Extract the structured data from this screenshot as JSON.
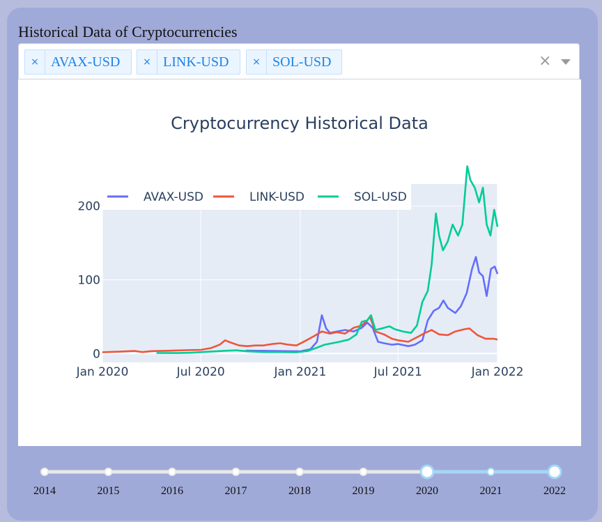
{
  "page": {
    "heading": "Historical Data of Cryptocurrencies"
  },
  "selector": {
    "chips": [
      {
        "label": "AVAX-USD",
        "remove": "×"
      },
      {
        "label": "LINK-USD",
        "remove": "×"
      },
      {
        "label": "SOL-USD",
        "remove": "×"
      }
    ],
    "clear_label": "×"
  },
  "colors": {
    "AVAX-USD": "#636efa",
    "LINK-USD": "#ef553b",
    "SOL-USD": "#00cc96",
    "plot_bg": "#e5ecf6",
    "slider_active": "#a5d7f5"
  },
  "chart_data": {
    "type": "line",
    "title": "Cryptocurrency Historical Data",
    "xlabel": "",
    "ylabel": "",
    "x_ticks": [
      "Jan 2020",
      "Jul 2020",
      "Jan 2021",
      "Jul 2021",
      "Jan 2022"
    ],
    "y_ticks": [
      "0",
      "100",
      "200"
    ],
    "xlim": [
      "2020-01-01",
      "2022-01-01"
    ],
    "ylim": [
      -12,
      230
    ],
    "grid": true,
    "legend": "top-left",
    "series": [
      {
        "name": "AVAX-USD",
        "points": [
          [
            "2020-09-22",
            4
          ],
          [
            "2020-10-15",
            3.8
          ],
          [
            "2020-11-15",
            3.5
          ],
          [
            "2020-12-15",
            3.2
          ],
          [
            "2021-01-01",
            3
          ],
          [
            "2021-01-20",
            6
          ],
          [
            "2021-02-01",
            16
          ],
          [
            "2021-02-10",
            52
          ],
          [
            "2021-02-18",
            34
          ],
          [
            "2021-02-25",
            28
          ],
          [
            "2021-03-10",
            30
          ],
          [
            "2021-03-25",
            32
          ],
          [
            "2021-04-10",
            30
          ],
          [
            "2021-04-25",
            35
          ],
          [
            "2021-05-05",
            42
          ],
          [
            "2021-05-15",
            35
          ],
          [
            "2021-05-25",
            16
          ],
          [
            "2021-06-05",
            14
          ],
          [
            "2021-06-20",
            12
          ],
          [
            "2021-07-01",
            13
          ],
          [
            "2021-07-20",
            10
          ],
          [
            "2021-08-01",
            12
          ],
          [
            "2021-08-15",
            18
          ],
          [
            "2021-08-25",
            45
          ],
          [
            "2021-09-05",
            58
          ],
          [
            "2021-09-15",
            62
          ],
          [
            "2021-09-23",
            72
          ],
          [
            "2021-10-01",
            62
          ],
          [
            "2021-10-15",
            55
          ],
          [
            "2021-10-25",
            64
          ],
          [
            "2021-11-05",
            82
          ],
          [
            "2021-11-15",
            115
          ],
          [
            "2021-11-22",
            131
          ],
          [
            "2021-11-28",
            110
          ],
          [
            "2021-12-05",
            105
          ],
          [
            "2021-12-12",
            78
          ],
          [
            "2021-12-20",
            115
          ],
          [
            "2021-12-27",
            118
          ],
          [
            "2022-01-01",
            108
          ]
        ]
      },
      {
        "name": "LINK-USD",
        "points": [
          [
            "2020-01-01",
            1.8
          ],
          [
            "2020-02-01",
            2.6
          ],
          [
            "2020-03-01",
            3.5
          ],
          [
            "2020-03-15",
            2
          ],
          [
            "2020-04-01",
            3.3
          ],
          [
            "2020-05-01",
            3.8
          ],
          [
            "2020-06-01",
            4.5
          ],
          [
            "2020-07-01",
            5
          ],
          [
            "2020-07-20",
            7.5
          ],
          [
            "2020-08-05",
            12
          ],
          [
            "2020-08-15",
            18
          ],
          [
            "2020-08-25",
            15
          ],
          [
            "2020-09-10",
            11
          ],
          [
            "2020-09-25",
            10
          ],
          [
            "2020-10-10",
            11
          ],
          [
            "2020-10-25",
            11
          ],
          [
            "2020-11-10",
            13
          ],
          [
            "2020-11-25",
            14
          ],
          [
            "2020-12-10",
            12
          ],
          [
            "2020-12-25",
            11
          ],
          [
            "2021-01-10",
            17
          ],
          [
            "2021-01-25",
            23
          ],
          [
            "2021-02-10",
            30
          ],
          [
            "2021-02-25",
            27
          ],
          [
            "2021-03-10",
            29
          ],
          [
            "2021-03-25",
            27
          ],
          [
            "2021-04-10",
            35
          ],
          [
            "2021-04-25",
            38
          ],
          [
            "2021-05-05",
            45
          ],
          [
            "2021-05-10",
            50
          ],
          [
            "2021-05-20",
            30
          ],
          [
            "2021-06-05",
            26
          ],
          [
            "2021-06-20",
            20
          ],
          [
            "2021-07-01",
            18
          ],
          [
            "2021-07-20",
            16
          ],
          [
            "2021-08-05",
            22
          ],
          [
            "2021-08-20",
            28
          ],
          [
            "2021-09-01",
            32
          ],
          [
            "2021-09-15",
            26
          ],
          [
            "2021-10-01",
            25
          ],
          [
            "2021-10-15",
            30
          ],
          [
            "2021-11-01",
            33
          ],
          [
            "2021-11-10",
            34
          ],
          [
            "2021-11-25",
            25
          ],
          [
            "2021-12-10",
            20
          ],
          [
            "2021-12-25",
            20
          ],
          [
            "2022-01-01",
            19
          ]
        ]
      },
      {
        "name": "SOL-USD",
        "points": [
          [
            "2020-04-10",
            0.8
          ],
          [
            "2020-05-15",
            0.7
          ],
          [
            "2020-06-15",
            1.1
          ],
          [
            "2020-07-15",
            2.5
          ],
          [
            "2020-08-15",
            3.8
          ],
          [
            "2020-09-05",
            4.4
          ],
          [
            "2020-09-25",
            3
          ],
          [
            "2020-10-25",
            2
          ],
          [
            "2020-11-25",
            2
          ],
          [
            "2020-12-25",
            1.8
          ],
          [
            "2021-01-15",
            3.5
          ],
          [
            "2021-02-01",
            8
          ],
          [
            "2021-02-15",
            12
          ],
          [
            "2021-03-01",
            14
          ],
          [
            "2021-03-15",
            16
          ],
          [
            "2021-04-01",
            19
          ],
          [
            "2021-04-15",
            26
          ],
          [
            "2021-04-25",
            43
          ],
          [
            "2021-05-05",
            45
          ],
          [
            "2021-05-12",
            52
          ],
          [
            "2021-05-20",
            32
          ],
          [
            "2021-06-01",
            34
          ],
          [
            "2021-06-15",
            37
          ],
          [
            "2021-06-25",
            33
          ],
          [
            "2021-07-10",
            30
          ],
          [
            "2021-07-25",
            28
          ],
          [
            "2021-08-05",
            38
          ],
          [
            "2021-08-15",
            70
          ],
          [
            "2021-08-25",
            85
          ],
          [
            "2021-09-01",
            120
          ],
          [
            "2021-09-09",
            190
          ],
          [
            "2021-09-15",
            160
          ],
          [
            "2021-09-22",
            140
          ],
          [
            "2021-10-01",
            152
          ],
          [
            "2021-10-10",
            175
          ],
          [
            "2021-10-20",
            160
          ],
          [
            "2021-10-28",
            175
          ],
          [
            "2021-11-06",
            254
          ],
          [
            "2021-11-12",
            235
          ],
          [
            "2021-11-20",
            225
          ],
          [
            "2021-11-28",
            205
          ],
          [
            "2021-12-05",
            225
          ],
          [
            "2021-12-12",
            175
          ],
          [
            "2021-12-19",
            160
          ],
          [
            "2021-12-26",
            195
          ],
          [
            "2022-01-01",
            172
          ]
        ]
      }
    ]
  },
  "slider": {
    "years": [
      "2014",
      "2015",
      "2016",
      "2017",
      "2018",
      "2019",
      "2020",
      "2021",
      "2022"
    ],
    "range": [
      "2020",
      "2022"
    ]
  }
}
